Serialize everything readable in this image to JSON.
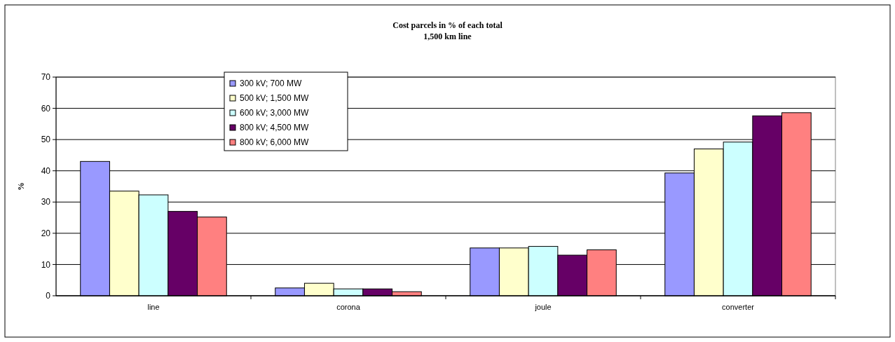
{
  "chart_data": {
    "type": "bar",
    "title": "Cost parcels in % of each total",
    "subtitle": "1,500 km line",
    "ylabel": "%",
    "categories": [
      "line",
      "corona",
      "joule",
      "converter"
    ],
    "series": [
      {
        "name": "300 kV; 700 MW",
        "color": "#9999ff",
        "values": [
          43,
          2.5,
          15.3,
          39.3
        ]
      },
      {
        "name": "500 kV; 1,500 MW",
        "color": "#ffffcc",
        "values": [
          33.5,
          4,
          15.3,
          47
        ]
      },
      {
        "name": "600 kV; 3,000 MW",
        "color": "#ccffff",
        "values": [
          32.3,
          2.2,
          15.8,
          49.2
        ]
      },
      {
        "name": "800 kV; 4,500 MW",
        "color": "#660066",
        "values": [
          27,
          2.2,
          13,
          57.6
        ]
      },
      {
        "name": "800 kV; 6,000 MW",
        "color": "#ff8080",
        "values": [
          25.2,
          1.3,
          14.7,
          58.6
        ]
      }
    ],
    "ylim": [
      0,
      70
    ],
    "yticks": [
      0,
      10,
      20,
      30,
      40,
      50,
      60,
      70
    ],
    "grid": "y",
    "legend": "top left"
  }
}
